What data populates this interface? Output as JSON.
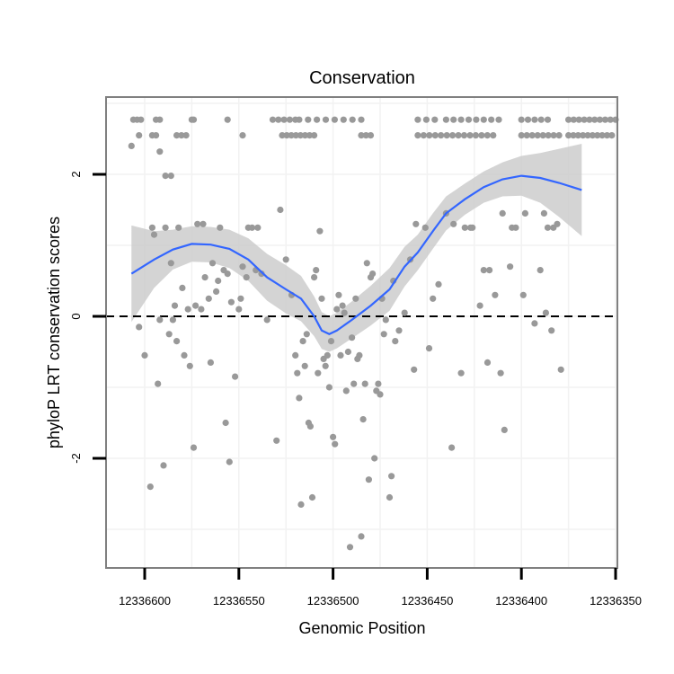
{
  "chart_data": {
    "type": "scatter",
    "title": "Conservation",
    "xlabel": "Genomic Position",
    "ylabel": "phyloP LRT conservation scores",
    "x_reversed": true,
    "xlim": [
      12336352,
      12336620
    ],
    "ylim": [
      -3.5,
      3.0
    ],
    "x_ticks": [
      12336600,
      12336550,
      12336500,
      12336450,
      12336400,
      12336350
    ],
    "x_tick_labels": [
      "12336600",
      "12336550",
      "12336500",
      "12336450",
      "12336400",
      "12336350"
    ],
    "y_ticks": [
      -2,
      0,
      2
    ],
    "y_tick_labels": [
      "-2",
      "0",
      "2"
    ],
    "reference_line": {
      "y": 0,
      "style": "dashed"
    },
    "grid": true,
    "colors": {
      "points": "#999999",
      "smooth_line": "#3366ff",
      "confidence_band": "#cccccc",
      "grid": "#f2f2f2",
      "panel_border": "#808080"
    },
    "points": [
      [
        12336607,
        2.4
      ],
      [
        12336603,
        -0.15
      ],
      [
        12336600,
        -0.55
      ],
      [
        12336597,
        -2.4
      ],
      [
        12336596,
        1.25
      ],
      [
        12336595,
        1.15
      ],
      [
        12336593,
        -0.95
      ],
      [
        12336592,
        -0.05
      ],
      [
        12336590,
        -2.1
      ],
      [
        12336589,
        1.25
      ],
      [
        12336587,
        -0.25
      ],
      [
        12336586,
        0.75
      ],
      [
        12336585,
        -0.05
      ],
      [
        12336584,
        0.15
      ],
      [
        12336583,
        -0.35
      ],
      [
        12336582,
        1.25
      ],
      [
        12336580,
        0.4
      ],
      [
        12336579,
        -0.55
      ],
      [
        12336577,
        0.1
      ],
      [
        12336576,
        -0.7
      ],
      [
        12336574,
        -1.85
      ],
      [
        12336573,
        0.15
      ],
      [
        12336572,
        1.3
      ],
      [
        12336570,
        0.1
      ],
      [
        12336569,
        1.3
      ],
      [
        12336568,
        0.55
      ],
      [
        12336566,
        0.25
      ],
      [
        12336565,
        -0.65
      ],
      [
        12336564,
        0.75
      ],
      [
        12336562,
        0.35
      ],
      [
        12336561,
        0.5
      ],
      [
        12336560,
        1.25
      ],
      [
        12336558,
        0.65
      ],
      [
        12336557,
        -1.5
      ],
      [
        12336556,
        0.6
      ],
      [
        12336555,
        -2.05
      ],
      [
        12336554,
        0.2
      ],
      [
        12336552,
        -0.85
      ],
      [
        12336550,
        0.1
      ],
      [
        12336549,
        0.25
      ],
      [
        12336548,
        0.7
      ],
      [
        12336546,
        0.55
      ],
      [
        12336545,
        1.25
      ],
      [
        12336543,
        1.25
      ],
      [
        12336541,
        0.65
      ],
      [
        12336540,
        1.25
      ],
      [
        12336538,
        0.6
      ],
      [
        12336535,
        -0.05
      ],
      [
        12336530,
        -1.75
      ],
      [
        12336528,
        1.5
      ],
      [
        12336525,
        0.8
      ],
      [
        12336522,
        0.3
      ],
      [
        12336520,
        -0.55
      ],
      [
        12336519,
        -0.8
      ],
      [
        12336518,
        -1.15
      ],
      [
        12336517,
        -2.65
      ],
      [
        12336516,
        -0.35
      ],
      [
        12336515,
        -0.7
      ],
      [
        12336514,
        -0.25
      ],
      [
        12336513,
        -1.5
      ],
      [
        12336512,
        -1.55
      ],
      [
        12336511,
        -2.55
      ],
      [
        12336510,
        0.55
      ],
      [
        12336509,
        0.65
      ],
      [
        12336508,
        -0.8
      ],
      [
        12336507,
        1.2
      ],
      [
        12336506,
        0.25
      ],
      [
        12336505,
        -0.6
      ],
      [
        12336504,
        -0.7
      ],
      [
        12336503,
        -0.55
      ],
      [
        12336502,
        -1.0
      ],
      [
        12336501,
        -0.35
      ],
      [
        12336500,
        -1.7
      ],
      [
        12336499,
        -1.8
      ],
      [
        12336498,
        0.1
      ],
      [
        12336497,
        0.3
      ],
      [
        12336496,
        -0.55
      ],
      [
        12336495,
        0.15
      ],
      [
        12336494,
        0.05
      ],
      [
        12336493,
        -1.05
      ],
      [
        12336492,
        -0.5
      ],
      [
        12336491,
        -3.25
      ],
      [
        12336490,
        -0.3
      ],
      [
        12336489,
        -0.95
      ],
      [
        12336488,
        0.25
      ],
      [
        12336487,
        -0.6
      ],
      [
        12336486,
        -0.55
      ],
      [
        12336485,
        -3.1
      ],
      [
        12336484,
        -1.45
      ],
      [
        12336483,
        -0.95
      ],
      [
        12336482,
        0.75
      ],
      [
        12336481,
        -2.3
      ],
      [
        12336480,
        0.55
      ],
      [
        12336479,
        0.6
      ],
      [
        12336478,
        -2.0
      ],
      [
        12336477,
        -1.05
      ],
      [
        12336476,
        -0.95
      ],
      [
        12336475,
        -1.1
      ],
      [
        12336474,
        0.25
      ],
      [
        12336473,
        -0.25
      ],
      [
        12336472,
        -0.05
      ],
      [
        12336470,
        -2.55
      ],
      [
        12336469,
        -2.25
      ],
      [
        12336468,
        0.5
      ],
      [
        12336467,
        -0.35
      ],
      [
        12336465,
        -0.2
      ],
      [
        12336462,
        0.05
      ],
      [
        12336459,
        0.8
      ],
      [
        12336457,
        -0.75
      ],
      [
        12336456,
        1.3
      ],
      [
        12336451,
        1.25
      ],
      [
        12336449,
        -0.45
      ],
      [
        12336447,
        0.25
      ],
      [
        12336444,
        0.45
      ],
      [
        12336440,
        1.45
      ],
      [
        12336437,
        -1.85
      ],
      [
        12336436,
        1.3
      ],
      [
        12336432,
        -0.8
      ],
      [
        12336430,
        1.25
      ],
      [
        12336427,
        1.25
      ],
      [
        12336426,
        1.25
      ],
      [
        12336422,
        0.15
      ],
      [
        12336420,
        0.65
      ],
      [
        12336418,
        -0.65
      ],
      [
        12336417,
        0.65
      ],
      [
        12336414,
        0.3
      ],
      [
        12336411,
        -0.8
      ],
      [
        12336410,
        1.45
      ],
      [
        12336409,
        -1.6
      ],
      [
        12336406,
        0.7
      ],
      [
        12336405,
        1.25
      ],
      [
        12336403,
        1.25
      ],
      [
        12336399,
        0.3
      ],
      [
        12336398,
        1.45
      ],
      [
        12336393,
        -0.1
      ],
      [
        12336390,
        0.65
      ],
      [
        12336388,
        1.45
      ],
      [
        12336387,
        0.05
      ],
      [
        12336386,
        1.25
      ],
      [
        12336384,
        -0.2
      ],
      [
        12336383,
        1.25
      ],
      [
        12336381,
        1.3
      ],
      [
        12336379,
        -0.75
      ]
    ],
    "point_groups": [
      {
        "y": 2.77,
        "x_start": 12336606,
        "x_end": 12336602,
        "count": 3
      },
      {
        "y": 2.77,
        "x_start": 12336594,
        "x_end": 12336592,
        "count": 2
      },
      {
        "y": 2.77,
        "x_start": 12336575,
        "x_end": 12336574,
        "count": 2
      },
      {
        "y": 2.77,
        "x_start": 12336556,
        "x_end": 12336556,
        "count": 1
      },
      {
        "y": 2.77,
        "x_start": 12336532,
        "x_end": 12336520,
        "count": 5
      },
      {
        "y": 2.77,
        "x_start": 12336518,
        "x_end": 12336485,
        "count": 8
      },
      {
        "y": 2.77,
        "x_start": 12336455,
        "x_end": 12336446,
        "count": 3
      },
      {
        "y": 2.77,
        "x_start": 12336440,
        "x_end": 12336412,
        "count": 8
      },
      {
        "y": 2.77,
        "x_start": 12336400,
        "x_end": 12336386,
        "count": 5
      },
      {
        "y": 2.77,
        "x_start": 12336375,
        "x_end": 12336350,
        "count": 10
      },
      {
        "y": 2.55,
        "x_start": 12336603,
        "x_end": 12336603,
        "count": 1
      },
      {
        "y": 2.55,
        "x_start": 12336596,
        "x_end": 12336594,
        "count": 2
      },
      {
        "y": 2.55,
        "x_start": 12336583,
        "x_end": 12336578,
        "count": 3
      },
      {
        "y": 2.55,
        "x_start": 12336548,
        "x_end": 12336548,
        "count": 1
      },
      {
        "y": 2.55,
        "x_start": 12336527,
        "x_end": 12336510,
        "count": 8
      },
      {
        "y": 2.55,
        "x_start": 12336485,
        "x_end": 12336480,
        "count": 3
      },
      {
        "y": 2.55,
        "x_start": 12336455,
        "x_end": 12336415,
        "count": 14
      },
      {
        "y": 2.55,
        "x_start": 12336400,
        "x_end": 12336380,
        "count": 8
      },
      {
        "y": 2.55,
        "x_start": 12336375,
        "x_end": 12336352,
        "count": 10
      },
      {
        "y": 2.32,
        "x_start": 12336592,
        "x_end": 12336592,
        "count": 1
      },
      {
        "y": 1.98,
        "x_start": 12336589,
        "x_end": 12336586,
        "count": 2
      }
    ],
    "smooth": [
      [
        12336607,
        0.6
      ],
      [
        12336595,
        0.8
      ],
      [
        12336585,
        0.94
      ],
      [
        12336575,
        1.02
      ],
      [
        12336565,
        1.01
      ],
      [
        12336555,
        0.95
      ],
      [
        12336545,
        0.8
      ],
      [
        12336535,
        0.55
      ],
      [
        12336525,
        0.38
      ],
      [
        12336517,
        0.25
      ],
      [
        12336510,
        0.0
      ],
      [
        12336506,
        -0.2
      ],
      [
        12336502,
        -0.25
      ],
      [
        12336498,
        -0.2
      ],
      [
        12336490,
        -0.05
      ],
      [
        12336480,
        0.15
      ],
      [
        12336470,
        0.38
      ],
      [
        12336462,
        0.7
      ],
      [
        12336455,
        0.9
      ],
      [
        12336447,
        1.2
      ],
      [
        12336440,
        1.45
      ],
      [
        12336430,
        1.65
      ],
      [
        12336420,
        1.82
      ],
      [
        12336410,
        1.93
      ],
      [
        12336400,
        1.98
      ],
      [
        12336390,
        1.95
      ],
      [
        12336380,
        1.88
      ],
      [
        12336368,
        1.78
      ]
    ],
    "band_half_width": [
      0.68,
      0.4,
      0.28,
      0.25,
      0.25,
      0.27,
      0.3,
      0.33,
      0.34,
      0.32,
      0.28,
      0.26,
      0.25,
      0.25,
      0.26,
      0.28,
      0.3,
      0.28,
      0.25,
      0.25,
      0.24,
      0.22,
      0.22,
      0.24,
      0.28,
      0.35,
      0.48,
      0.65
    ]
  }
}
